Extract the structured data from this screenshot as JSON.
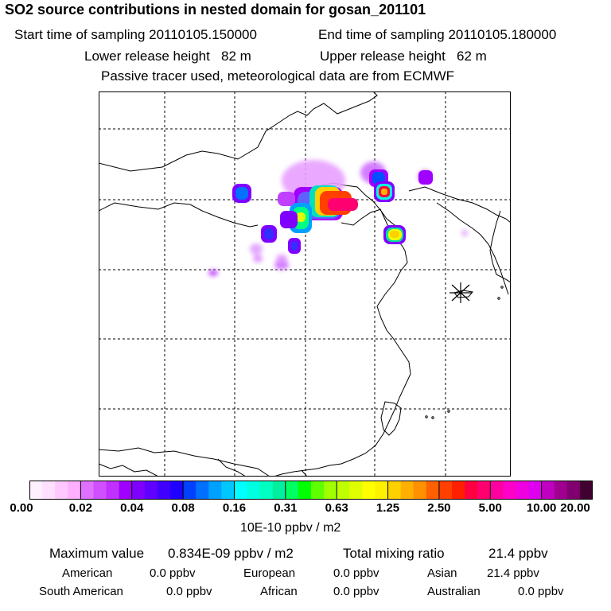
{
  "header": {
    "title": "SO2 source contributions in nested domain for gosan_201101",
    "start_time": "Start time of sampling 20110105.150000",
    "end_time": "End time of sampling 20110105.180000",
    "lower_release": "Lower release height   82 m",
    "upper_release": "Upper release height   62 m",
    "tracer_note": "Passive tracer used, meteorological data are from ECMWF"
  },
  "map": {
    "receptor_marker": "gosan",
    "plume_colors": [
      "#8000ff",
      "#0070ff",
      "#00f0a0",
      "#c0ff00",
      "#ffd000",
      "#ff0040",
      "#ff00ff"
    ]
  },
  "colorbar": {
    "ticks": [
      "0.00",
      "0.02",
      "0.04",
      "0.08",
      "0.16",
      "0.31",
      "0.63",
      "1.25",
      "2.50",
      "5.00",
      "10.00",
      "20.00"
    ],
    "units": "10E-10 ppbv / m2",
    "colors": [
      [
        "#fff0ff",
        "#ffe0ff",
        "#ffc8ff",
        "#ffb0ff"
      ],
      [
        "#e070ff",
        "#d050ff",
        "#c030ff",
        "#a000ff"
      ],
      [
        "#8000ff",
        "#6000ff",
        "#4000ff",
        "#2000ff"
      ],
      [
        "#0040ff",
        "#0070ff",
        "#00a0ff",
        "#00c8ff"
      ],
      [
        "#00ffff",
        "#00ffe0",
        "#00ffc0",
        "#00f0a0"
      ],
      [
        "#00ff60",
        "#00ff00",
        "#60ff00",
        "#a0ff00"
      ],
      [
        "#c0ff00",
        "#e0ff00",
        "#ffff00",
        "#fff000"
      ],
      [
        "#ffd000",
        "#ffb000",
        "#ff9000",
        "#ff6000"
      ],
      [
        "#ff4000",
        "#ff2000",
        "#ff0040",
        "#ff0070"
      ],
      [
        "#ff00a0",
        "#ff00c8",
        "#f000e0",
        "#e000f0"
      ],
      [
        "#c000c0",
        "#a00090",
        "#800070",
        "#400030"
      ]
    ]
  },
  "summary": {
    "max_label": "Maximum value",
    "max_value": "0.834E-09 ppbv / m2",
    "total_label": "Total mixing ratio",
    "total_value": "21.4 ppbv",
    "regions": [
      {
        "name": "American",
        "value": "0.0 ppbv"
      },
      {
        "name": "European",
        "value": "0.0 ppbv"
      },
      {
        "name": "Asian",
        "value": "21.4 ppbv"
      },
      {
        "name": "South American",
        "value": "0.0 ppbv"
      },
      {
        "name": "African",
        "value": "0.0 ppbv"
      },
      {
        "name": "Australian",
        "value": "0.0 ppbv"
      }
    ]
  }
}
